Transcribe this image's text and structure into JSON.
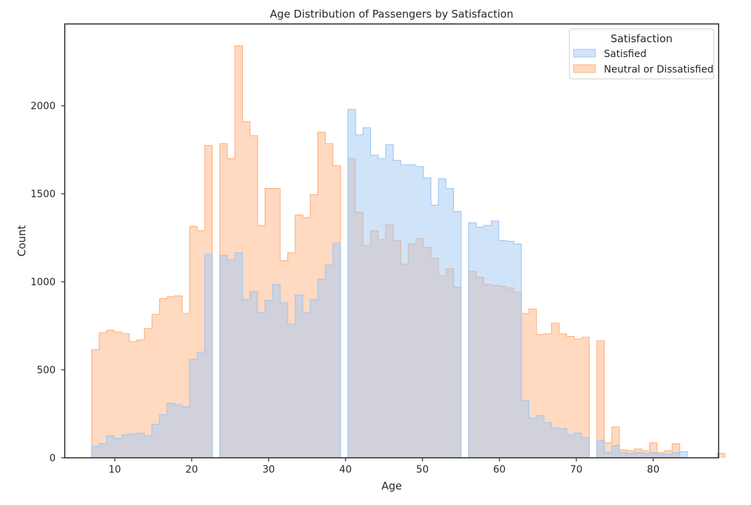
{
  "chart_data": {
    "type": "histogram",
    "title": "Age Distribution of Passengers by Satisfaction",
    "xlabel": "Age",
    "ylabel": "Count",
    "xlim": [
      3.5,
      88.5
    ],
    "ylim": [
      0,
      2465
    ],
    "xticks": [
      10,
      20,
      30,
      40,
      50,
      60,
      70,
      80
    ],
    "yticks": [
      0,
      500,
      1000,
      1500,
      2000
    ],
    "grid": false,
    "legend": {
      "title": "Satisfaction",
      "placement": "top-right"
    },
    "bin_start": 7,
    "bin_width": 0.98,
    "series": [
      {
        "name": "Satisfied",
        "color": "#a1c9f4",
        "values": [
          65,
          80,
          125,
          110,
          130,
          135,
          140,
          125,
          190,
          245,
          310,
          300,
          290,
          560,
          600,
          1155,
          0,
          1150,
          1125,
          1165,
          900,
          945,
          825,
          895,
          985,
          880,
          760,
          925,
          825,
          900,
          1015,
          1095,
          1220,
          0,
          1980,
          1835,
          1875,
          1720,
          1700,
          1780,
          1690,
          1665,
          1665,
          1655,
          1590,
          1435,
          1585,
          1530,
          1400,
          0,
          1335,
          1310,
          1320,
          1345,
          1235,
          1230,
          1215,
          325,
          225,
          240,
          200,
          170,
          165,
          130,
          140,
          115,
          0,
          100,
          30,
          70,
          30,
          25,
          30,
          25,
          30,
          20,
          20,
          30,
          35,
          0,
          0,
          0,
          0,
          0,
          0
        ]
      },
      {
        "name": "Neutral or Dissatisfied",
        "color": "#ffb482",
        "values": [
          615,
          710,
          725,
          715,
          705,
          660,
          670,
          735,
          815,
          905,
          915,
          920,
          820,
          1315,
          1290,
          1775,
          0,
          1785,
          1700,
          2340,
          1910,
          1830,
          1320,
          1530,
          1530,
          1120,
          1165,
          1380,
          1365,
          1495,
          1850,
          1785,
          1660,
          0,
          1700,
          1395,
          1205,
          1290,
          1240,
          1325,
          1235,
          1100,
          1215,
          1245,
          1195,
          1135,
          1035,
          1075,
          970,
          0,
          1060,
          1025,
          985,
          980,
          975,
          965,
          940,
          820,
          845,
          700,
          705,
          765,
          705,
          690,
          675,
          685,
          0,
          665,
          85,
          175,
          45,
          40,
          50,
          40,
          85,
          30,
          40,
          80,
          0,
          0,
          0,
          0,
          0,
          25
        ]
      }
    ]
  }
}
